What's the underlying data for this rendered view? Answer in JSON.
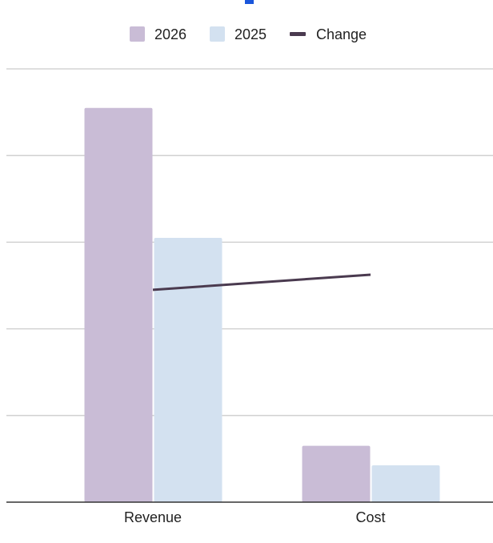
{
  "chart_data": {
    "type": "bar",
    "categories": [
      "Revenue",
      "Cost"
    ],
    "series": [
      {
        "name": "2026",
        "values": [
          91,
          13
        ],
        "color": "#c9bcd6"
      },
      {
        "name": "2025",
        "values": [
          61,
          8.5
        ],
        "color": "#d3e1f0"
      }
    ],
    "line_series": {
      "name": "Change",
      "values": [
        49,
        52.5
      ],
      "color": "#4a3a4f"
    },
    "ylim": [
      0,
      100
    ],
    "grid": true,
    "legend": "top",
    "title": "",
    "xlabel": "",
    "ylabel": ""
  }
}
